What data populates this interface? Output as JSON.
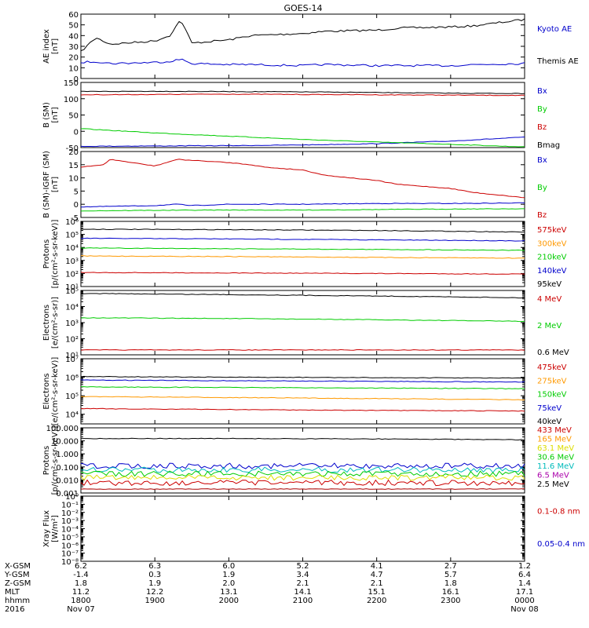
{
  "title": "GOES-14",
  "colors": {
    "black": "#000000",
    "blue": "#0000cc",
    "green": "#00cc00",
    "red": "#cc0000",
    "orange": "#ff9900",
    "bright_green": "#33dd00",
    "cyan": "#00bbbb",
    "purple": "#aa00aa",
    "yellow": "#dddd00",
    "darkred": "#aa0000"
  },
  "chart_data": [
    {
      "type": "line",
      "ylabel": [
        "AE index",
        "[nT]"
      ],
      "ylim": [
        0,
        60
      ],
      "yscale": "linear",
      "yticks": [
        0,
        10,
        20,
        30,
        40,
        50,
        60
      ],
      "ytick_labels": [
        "0",
        "10",
        "20",
        "30",
        "40",
        "50",
        "60"
      ],
      "series": [
        {
          "name": "Kyoto AE",
          "color": "#0000cc",
          "label_color": "#0000cc",
          "draw_color": "#000000",
          "x": [
            1800,
            1820,
            1840,
            1900,
            1920,
            1935,
            1950,
            2000,
            2030,
            2100,
            2130,
            2200,
            2230,
            2300,
            2330,
            2400
          ],
          "y": [
            25,
            38,
            32,
            35,
            40,
            55,
            33,
            36,
            40,
            42,
            44,
            45,
            47,
            48,
            49,
            55
          ]
        },
        {
          "name": "Themis AE",
          "color": "#000000",
          "label_color": "#000000",
          "draw_color": "#0000cc",
          "x": [
            1800,
            1820,
            1840,
            1900,
            1920,
            1935,
            1950,
            2000,
            2030,
            2100,
            2130,
            2200,
            2230,
            2300,
            2330,
            2400
          ],
          "y": [
            15,
            16,
            14,
            15,
            16,
            18,
            14,
            13,
            13,
            12,
            13,
            12,
            12,
            12,
            13,
            14
          ]
        }
      ]
    },
    {
      "type": "line",
      "ylabel": [
        "B (SM)",
        "[nT]"
      ],
      "ylim": [
        -50,
        150
      ],
      "yscale": "linear",
      "yticks": [
        -50,
        0,
        50,
        100,
        150
      ],
      "ytick_labels": [
        "-50",
        "0",
        "50",
        "100",
        "150"
      ],
      "series": [
        {
          "name": "Bx",
          "color": "#0000cc",
          "x": [
            1800,
            1900,
            2000,
            2100,
            2200,
            2300,
            2400
          ],
          "y": [
            -46,
            -45,
            -44,
            -42,
            -38,
            -30,
            -18
          ]
        },
        {
          "name": "By",
          "color": "#00cc00",
          "x": [
            1800,
            1900,
            2000,
            2100,
            2200,
            2300,
            2400
          ],
          "y": [
            8,
            -5,
            -15,
            -25,
            -33,
            -40,
            -48
          ]
        },
        {
          "name": "Bz",
          "color": "#cc0000",
          "x": [
            1800,
            1900,
            2000,
            2100,
            2200,
            2300,
            2400
          ],
          "y": [
            112,
            113,
            114,
            113,
            112,
            111,
            110
          ]
        },
        {
          "name": "Bmag",
          "color": "#000000",
          "x": [
            1800,
            1900,
            2000,
            2100,
            2200,
            2300,
            2400
          ],
          "y": [
            122,
            123,
            122,
            121,
            119,
            117,
            116
          ]
        }
      ]
    },
    {
      "type": "line",
      "ylabel": [
        "B (SM)-IGRF (SM)",
        "[nT]"
      ],
      "ylim": [
        -5,
        20
      ],
      "yscale": "linear",
      "yticks": [
        -5,
        0,
        5,
        10,
        15,
        20
      ],
      "ytick_labels": [
        "-5",
        "0",
        "5",
        "10",
        "15",
        "20"
      ],
      "series": [
        {
          "name": "Bx",
          "color": "#0000cc",
          "x": [
            1800,
            1900,
            1930,
            1950,
            2000,
            2100,
            2200,
            2300,
            2400
          ],
          "y": [
            -1,
            -0.5,
            0,
            -0.5,
            0,
            0,
            0.3,
            0.3,
            0.5
          ]
        },
        {
          "name": "By",
          "color": "#00cc00",
          "x": [
            1800,
            1900,
            2000,
            2100,
            2200,
            2300,
            2400
          ],
          "y": [
            -2.5,
            -2.3,
            -2.2,
            -2.2,
            -2,
            -1.8,
            -1.7
          ]
        },
        {
          "name": "Bz",
          "color": "#cc0000",
          "x": [
            1800,
            1830,
            1840,
            1900,
            1930,
            2000,
            2030,
            2050,
            2100,
            2130,
            2200,
            2230,
            2300,
            2330,
            2400
          ],
          "y": [
            14,
            15,
            17,
            14.5,
            17,
            15.8,
            15,
            14,
            13,
            11,
            9,
            7.5,
            6,
            4.5,
            2.5
          ]
        }
      ]
    },
    {
      "type": "line",
      "ylabel": [
        "Protons",
        "[p/(cm²-s-sr-keV)]"
      ],
      "ylim": [
        10,
        1000000
      ],
      "yscale": "log",
      "yticks": [
        10,
        100,
        1000,
        10000,
        100000,
        1000000
      ],
      "ytick_labels": [
        "10¹",
        "10²",
        "10³",
        "10⁴",
        "10⁵",
        "10⁶"
      ],
      "series": [
        {
          "name": "575keV",
          "color": "#cc0000",
          "draw_color": "#000000",
          "x": [
            1800,
            2000,
            2200,
            2400
          ],
          "y": [
            250000,
            230000,
            200000,
            150000
          ]
        },
        {
          "name": "300keV",
          "color": "#ff9900",
          "draw_color": "#0000cc",
          "x": [
            1800,
            2000,
            2200,
            2400
          ],
          "y": [
            50000,
            45000,
            38000,
            32000
          ]
        },
        {
          "name": "210keV",
          "color": "#00cc00",
          "draw_color": "#00cc00",
          "x": [
            1800,
            2000,
            2200,
            2400
          ],
          "y": [
            9000,
            8000,
            7000,
            6000
          ]
        },
        {
          "name": "140keV",
          "color": "#0000cc",
          "draw_color": "#ff9900",
          "x": [
            1800,
            2000,
            2200,
            2400
          ],
          "y": [
            2200,
            2000,
            1700,
            1500
          ]
        },
        {
          "name": "95keV",
          "color": "#000000",
          "draw_color": "#cc0000",
          "x": [
            1800,
            2000,
            2200,
            2400
          ],
          "y": [
            120,
            110,
            100,
            90
          ]
        }
      ]
    },
    {
      "type": "line",
      "ylabel": [
        "Electrons",
        "[e/(cm²-s-sr)]"
      ],
      "ylim": [
        10,
        100000
      ],
      "yscale": "log",
      "yticks": [
        10,
        100,
        1000,
        10000,
        100000
      ],
      "ytick_labels": [
        "10¹",
        "10²",
        "10³",
        "10⁴",
        "10⁵"
      ],
      "series": [
        {
          "name": "4 MeV",
          "color": "#cc0000",
          "draw_color": "#cc0000",
          "x": [
            1800,
            2000,
            2200,
            2400
          ],
          "y": [
            20,
            20,
            20,
            20
          ]
        },
        {
          "name": "2 MeV",
          "color": "#00cc00",
          "draw_color": "#00cc00",
          "x": [
            1800,
            2000,
            2200,
            2400
          ],
          "y": [
            2000,
            1800,
            1500,
            1200
          ]
        },
        {
          "name": "0.6 MeV",
          "color": "#000000",
          "draw_color": "#000000",
          "x": [
            1800,
            2000,
            2200,
            2400
          ],
          "y": [
            65000,
            55000,
            45000,
            35000
          ]
        }
      ]
    },
    {
      "type": "line",
      "ylabel": [
        "Electrons",
        "[e/(cm²-s-sr-keV)]"
      ],
      "ylim": [
        3000,
        10000000
      ],
      "yscale": "log",
      "yticks": [
        10000,
        100000,
        1000000,
        10000000
      ],
      "ytick_labels": [
        "10⁴",
        "10⁵",
        "10⁶",
        "10⁷"
      ],
      "series": [
        {
          "name": "475keV",
          "color": "#cc0000",
          "draw_color": "#000000",
          "x": [
            1800,
            2000,
            2200,
            2400
          ],
          "y": [
            1100000,
            1000000,
            950000,
            900000
          ]
        },
        {
          "name": "275keV",
          "color": "#ff9900",
          "draw_color": "#0000cc",
          "x": [
            1800,
            2000,
            2200,
            2400
          ],
          "y": [
            700000,
            650000,
            600000,
            550000
          ]
        },
        {
          "name": "150keV",
          "color": "#00cc00",
          "draw_color": "#00cc00",
          "x": [
            1800,
            2000,
            2200,
            2400
          ],
          "y": [
            300000,
            280000,
            260000,
            240000
          ]
        },
        {
          "name": "75keV",
          "color": "#0000cc",
          "draw_color": "#ff9900",
          "x": [
            1800,
            2000,
            2200,
            2400
          ],
          "y": [
            90000,
            80000,
            70000,
            60000
          ]
        },
        {
          "name": "40keV",
          "color": "#000000",
          "draw_color": "#cc0000",
          "x": [
            1800,
            2000,
            2200,
            2400
          ],
          "y": [
            20000,
            18000,
            16000,
            15000
          ]
        }
      ]
    },
    {
      "type": "line",
      "ylabel": [
        "Protons",
        "[p/(cm²-s-sr-keV)]"
      ],
      "ylim": [
        0.001,
        100
      ],
      "yscale": "log",
      "yticks": [
        0.001,
        0.01,
        0.1,
        1,
        10,
        100
      ],
      "ytick_labels": [
        "0.001",
        "0.010",
        "0.100",
        "1.000",
        "10.000",
        "100.000"
      ],
      "series": [
        {
          "name": "433 MeV",
          "color": "#cc0000",
          "draw_color": "#000000",
          "noisy": false,
          "x": [
            1800,
            2000,
            2200,
            2400
          ],
          "y": [
            15,
            15,
            14,
            12
          ]
        },
        {
          "name": "165 MeV",
          "color": "#ff9900",
          "draw_color": "#0000cc",
          "noisy": true,
          "x": [
            1800,
            2400
          ],
          "y": [
            0.12,
            0.12
          ]
        },
        {
          "name": "63.1 MeV",
          "color": "#dddd00",
          "draw_color": "#00bbbb",
          "noisy": true,
          "x": [
            1800,
            2400
          ],
          "y": [
            0.06,
            0.06
          ]
        },
        {
          "name": "30.6 MeV",
          "color": "#00cc00",
          "draw_color": "#00cc00",
          "noisy": true,
          "x": [
            1800,
            2400
          ],
          "y": [
            0.03,
            0.03
          ]
        },
        {
          "name": "11.6 MeV",
          "color": "#00bbbb",
          "draw_color": "#dddd00",
          "noisy": true,
          "x": [
            1800,
            2400
          ],
          "y": [
            0.015,
            0.015
          ]
        },
        {
          "name": "6.5 MeV",
          "color": "#aa00aa",
          "draw_color": "#cc0000",
          "noisy": true,
          "x": [
            1800,
            2400
          ],
          "y": [
            0.006,
            0.006
          ]
        },
        {
          "name": "2.5 MeV",
          "color": "#000000",
          "draw_color": "#aa0000",
          "noisy": false,
          "x": [
            1800,
            2400
          ],
          "y": [
            0.002,
            0.002
          ]
        }
      ]
    },
    {
      "type": "line",
      "ylabel": [
        "Xray Flux",
        "[W/m²]"
      ],
      "ylim": [
        1e-08,
        1
      ],
      "yscale": "log",
      "yticks": [
        1e-08,
        1e-07,
        1e-06,
        1e-05,
        0.0001,
        0.001,
        0.01,
        0.1,
        1
      ],
      "ytick_labels": [
        "10⁻⁸",
        "10⁻⁷",
        "10⁻⁶",
        "10⁻⁵",
        "10⁻⁴",
        "10⁻³",
        "10⁻²",
        "10⁻¹",
        "10⁰"
      ],
      "series": [
        {
          "name": "0.1-0.8 nm",
          "color": "#cc0000",
          "x": [],
          "y": []
        },
        {
          "name": "0.05-0.4 nm",
          "color": "#0000cc",
          "x": [],
          "y": []
        }
      ]
    }
  ],
  "x_axis": {
    "range": [
      1800,
      2400
    ],
    "row_labels": [
      "X-GSM",
      "Y-GSM",
      "Z-GSM",
      "MLT",
      "hhmm",
      "2016"
    ],
    "columns": [
      {
        "values": [
          "6.2",
          "-1.4",
          "1.8",
          "11.2",
          "1800",
          "Nov 07"
        ]
      },
      {
        "values": [
          "6.3",
          "0.3",
          "1.9",
          "12.2",
          "1900",
          ""
        ]
      },
      {
        "values": [
          "6.0",
          "1.9",
          "2.0",
          "13.1",
          "2000",
          ""
        ]
      },
      {
        "values": [
          "5.2",
          "3.4",
          "2.1",
          "14.1",
          "2100",
          ""
        ]
      },
      {
        "values": [
          "4.1",
          "4.7",
          "2.1",
          "15.1",
          "2200",
          ""
        ]
      },
      {
        "values": [
          "2.7",
          "5.7",
          "1.8",
          "16.1",
          "2300",
          ""
        ]
      },
      {
        "values": [
          "1.2",
          "6.4",
          "1.4",
          "17.1",
          "0000",
          "Nov 08"
        ]
      }
    ]
  }
}
